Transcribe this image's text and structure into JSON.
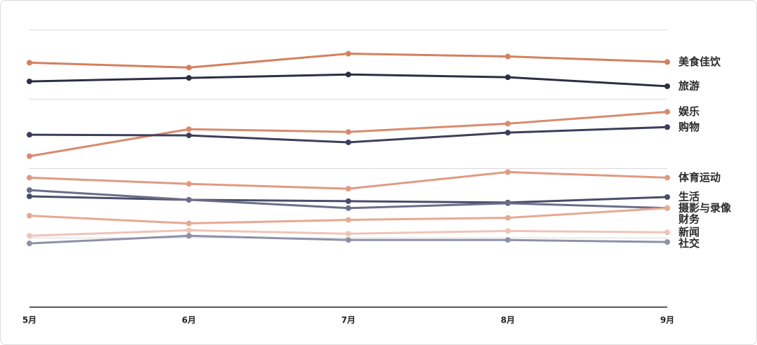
{
  "chart_data": {
    "type": "line",
    "categories": [
      "5月",
      "6月",
      "7月",
      "8月",
      "9月"
    ],
    "ylim": [
      0,
      4
    ],
    "yticks": [
      1,
      2,
      3,
      4
    ],
    "grid": true,
    "series": [
      {
        "name": "美食佳饮",
        "color": "#d3805f",
        "values": [
          3.53,
          3.46,
          3.66,
          3.62,
          3.54
        ]
      },
      {
        "name": "旅游",
        "color": "#2c2e44",
        "values": [
          3.26,
          3.31,
          3.36,
          3.32,
          3.19
        ]
      },
      {
        "name": "娱乐",
        "color": "#d98a6c",
        "values": [
          2.18,
          2.57,
          2.53,
          2.65,
          2.82
        ]
      },
      {
        "name": "购物",
        "color": "#3d3f5a",
        "values": [
          2.49,
          2.48,
          2.38,
          2.52,
          2.6
        ]
      },
      {
        "name": "体育运动",
        "color": "#e09a80",
        "values": [
          1.87,
          1.78,
          1.71,
          1.95,
          1.87
        ]
      },
      {
        "name": "生活",
        "color": "#4a4d6a",
        "values": [
          1.6,
          1.55,
          1.53,
          1.51,
          1.59
        ]
      },
      {
        "name": "摄影与录像",
        "color": "#6b6e88",
        "values": [
          1.69,
          1.55,
          1.43,
          1.5,
          1.43
        ]
      },
      {
        "name": "财务",
        "color": "#e8a892",
        "values": [
          1.32,
          1.21,
          1.26,
          1.29,
          1.43
        ]
      },
      {
        "name": "新闻",
        "color": "#efc4b6",
        "values": [
          1.03,
          1.11,
          1.06,
          1.1,
          1.08
        ]
      },
      {
        "name": "社交",
        "color": "#8e90a8",
        "values": [
          0.92,
          1.03,
          0.97,
          0.97,
          0.94
        ]
      }
    ]
  }
}
